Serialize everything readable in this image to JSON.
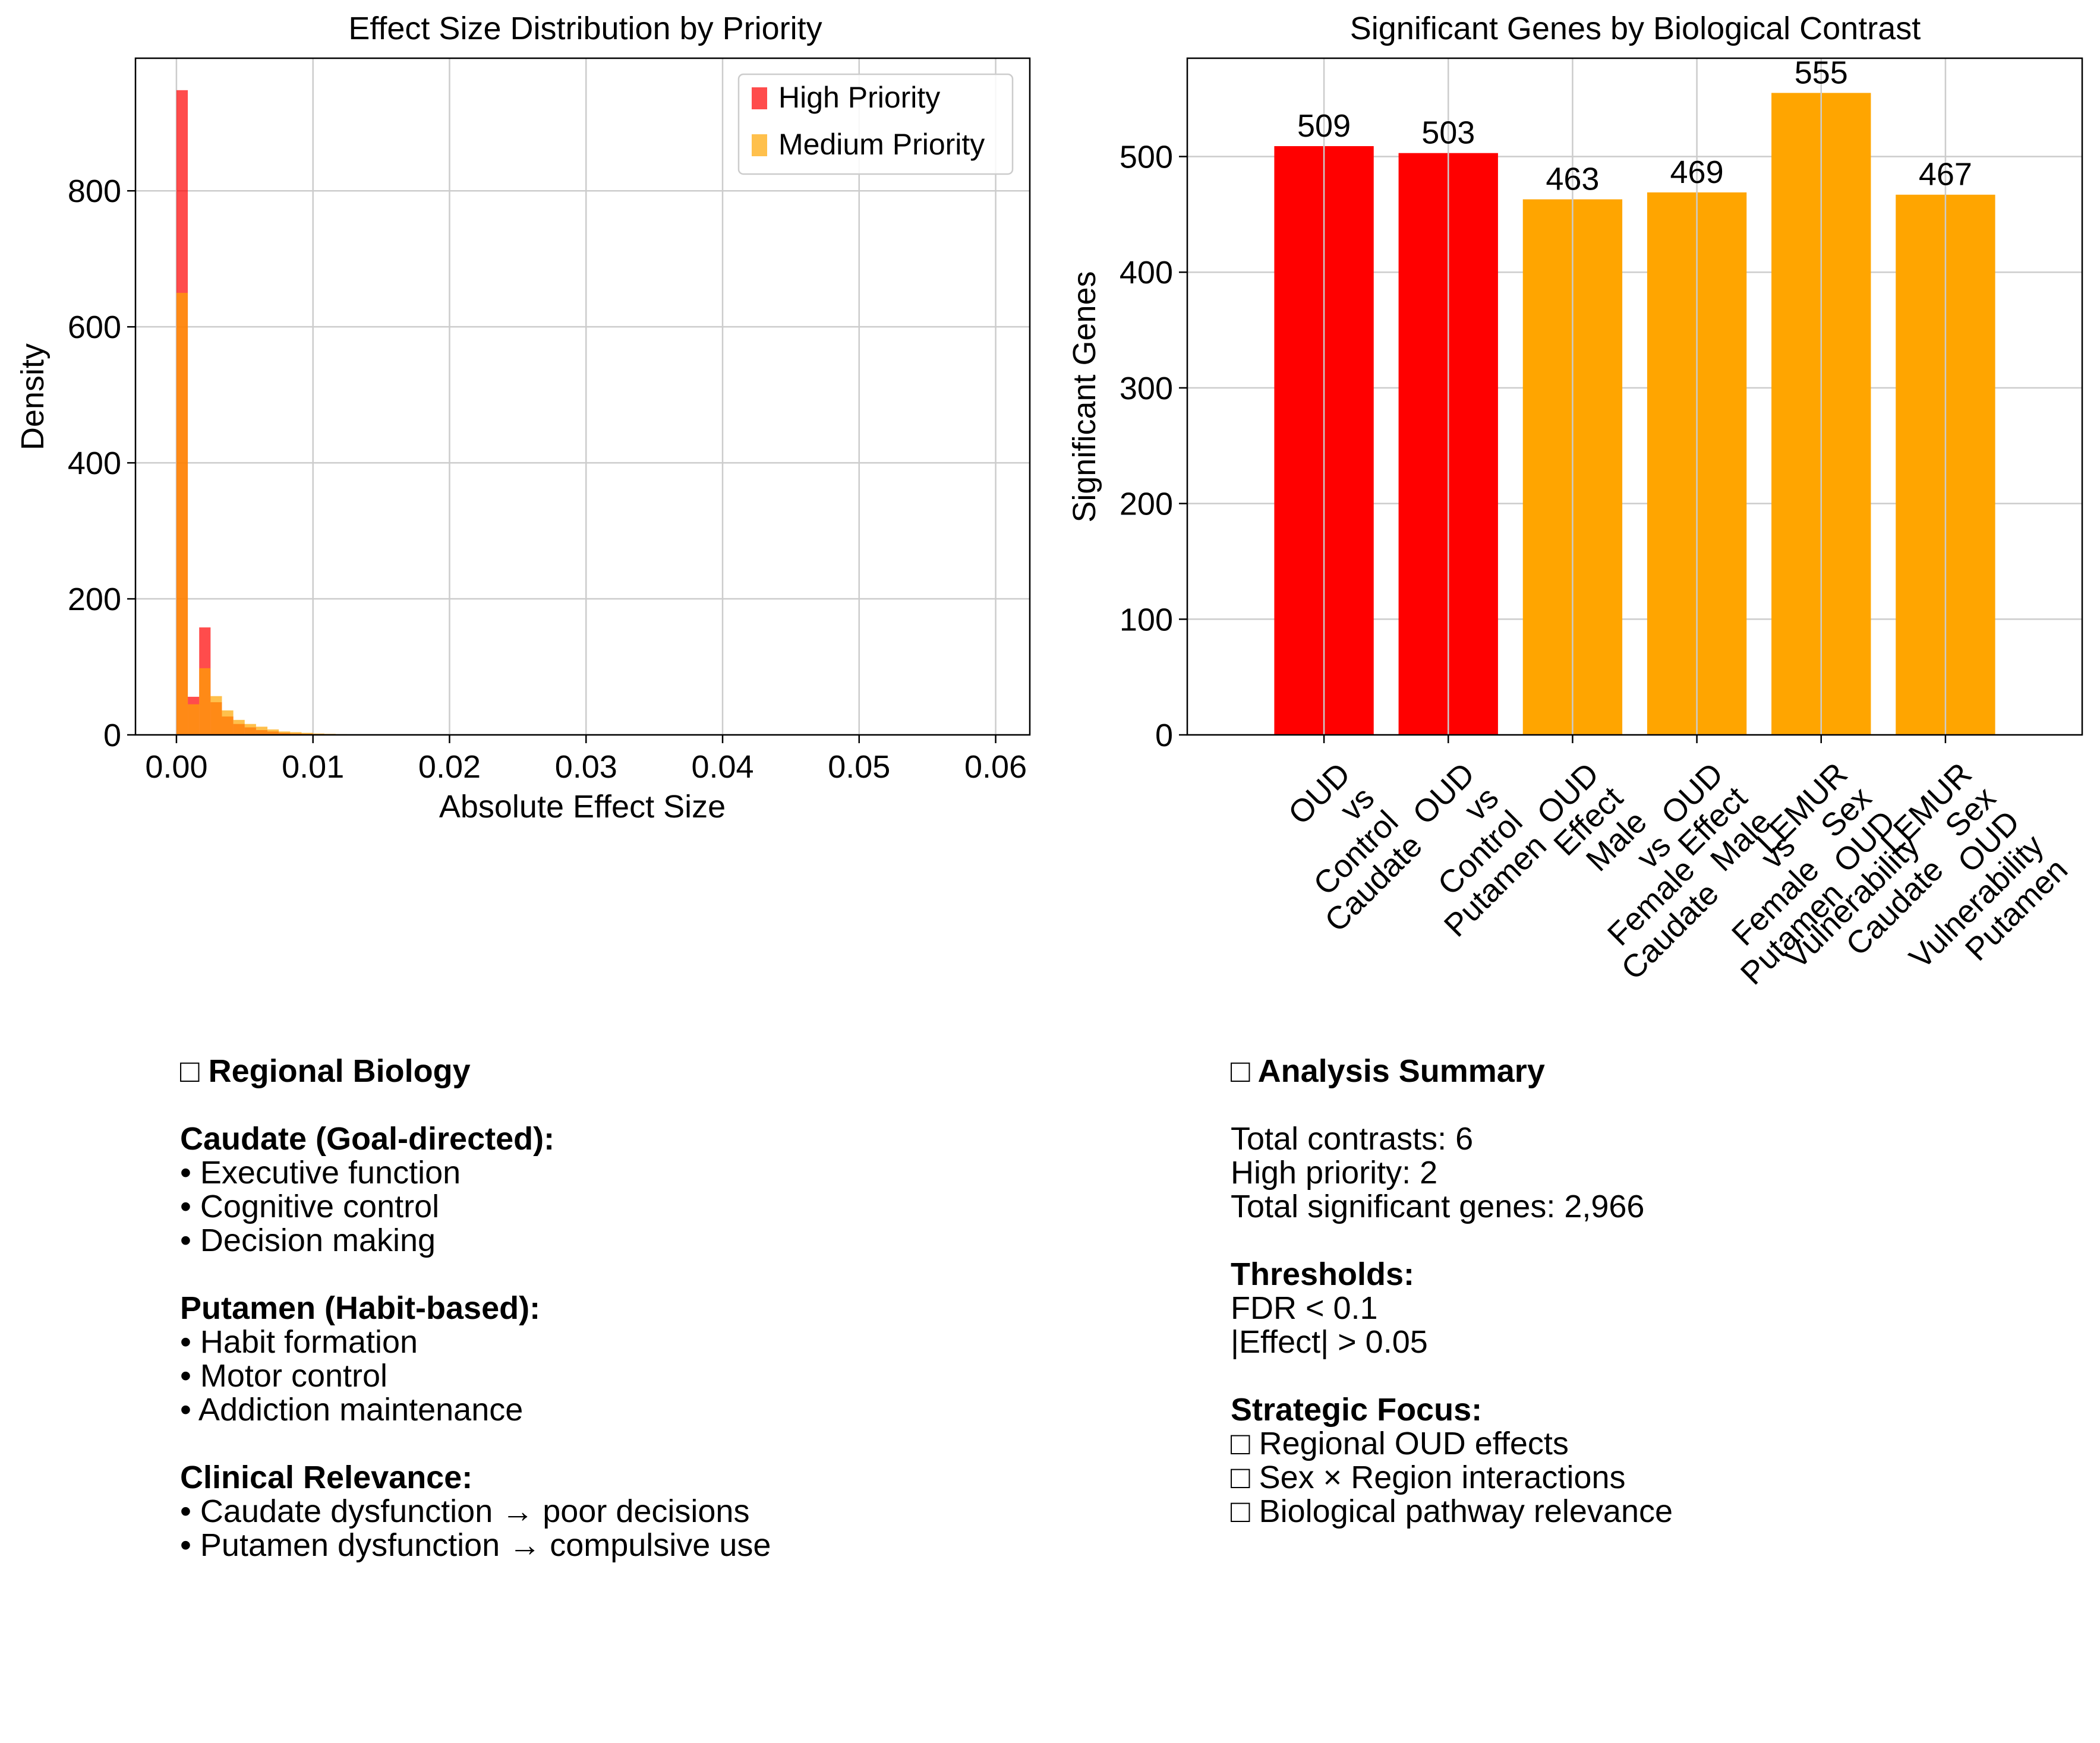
{
  "chart_data": [
    {
      "type": "histogram",
      "title": "Effect Size Distribution by Priority",
      "xlabel": "Absolute Effect Size",
      "ylabel": "Density",
      "xlim": [
        -0.003,
        0.0625
      ],
      "ylim": [
        0,
        995
      ],
      "xticks": [
        0.0,
        0.01,
        0.02,
        0.03,
        0.04,
        0.05,
        0.06
      ],
      "xtick_labels": [
        "0.00",
        "0.01",
        "0.02",
        "0.03",
        "0.04",
        "0.05",
        "0.06"
      ],
      "yticks": [
        0,
        200,
        400,
        600,
        800
      ],
      "ytick_labels": [
        "0",
        "200",
        "400",
        "600",
        "800"
      ],
      "grid": true,
      "legend_position": "top-right",
      "series": [
        {
          "name": "High Priority",
          "color": "#ff0000",
          "alpha": 0.7,
          "bin_width": 0.000833,
          "bin_start": 0.0,
          "values": [
            948,
            56,
            158,
            48,
            27,
            16,
            11,
            7,
            5,
            3,
            2,
            1.5,
            1
          ]
        },
        {
          "name": "Medium Priority",
          "color": "#ffa500",
          "alpha": 0.7,
          "bin_width": 0.000833,
          "bin_start": 0.0,
          "values": [
            650,
            45,
            98,
            57,
            36,
            22,
            16,
            12,
            8,
            5,
            4,
            3,
            2,
            1.5,
            1,
            0.5
          ]
        }
      ]
    },
    {
      "type": "bar",
      "title": "Significant Genes by Biological Contrast",
      "xlabel": "",
      "ylabel": "Significant Genes",
      "ylim": [
        0,
        585
      ],
      "yticks": [
        0,
        100,
        200,
        300,
        400,
        500
      ],
      "ytick_labels": [
        "0",
        "100",
        "200",
        "300",
        "400",
        "500"
      ],
      "grid": true,
      "categories": [
        "OUD\nvs\nControl\nCaudate",
        "OUD\nvs\nControl\nPutamen",
        "OUD\nEffect\nMale\nvs\nFemale\nCaudate",
        "OUD\nEffect\nMale\nvs\nFemale\nPutamen",
        "LEMUR\nSex\nOUD\nVulnerability\nCaudate",
        "LEMUR\nSex\nOUD\nVulnerability\nPutamen"
      ],
      "values": [
        509,
        503,
        463,
        469,
        555,
        467
      ],
      "value_labels": [
        "509",
        "503",
        "463",
        "469",
        "555",
        "467"
      ],
      "colors": [
        "#ff0000",
        "#ff0000",
        "#ffa500",
        "#ffa500",
        "#ffa500",
        "#ffa500"
      ]
    }
  ],
  "regional_biology": {
    "lines": [
      {
        "text": "□ Regional Biology",
        "bold": true
      },
      {
        "text": "",
        "bold": false
      },
      {
        "text": "Caudate (Goal-directed):",
        "bold": true
      },
      {
        "text": "• Executive function",
        "bold": false
      },
      {
        "text": "• Cognitive control",
        "bold": false
      },
      {
        "text": "• Decision making",
        "bold": false
      },
      {
        "text": "",
        "bold": false
      },
      {
        "text": "Putamen (Habit-based):",
        "bold": true
      },
      {
        "text": "• Habit formation",
        "bold": false
      },
      {
        "text": "• Motor control",
        "bold": false
      },
      {
        "text": "• Addiction maintenance",
        "bold": false
      },
      {
        "text": "",
        "bold": false
      },
      {
        "text": "Clinical Relevance:",
        "bold": true
      },
      {
        "text": "• Caudate dysfunction → poor decisions",
        "bold": false
      },
      {
        "text": "• Putamen dysfunction → compulsive use",
        "bold": false
      }
    ]
  },
  "analysis_summary": {
    "lines": [
      {
        "text": "□ Analysis Summary",
        "bold": true
      },
      {
        "text": "",
        "bold": false
      },
      {
        "text": "Total contrasts: 6",
        "bold": false
      },
      {
        "text": "High priority: 2",
        "bold": false
      },
      {
        "text": "Total significant genes: 2,966",
        "bold": false
      },
      {
        "text": "",
        "bold": false
      },
      {
        "text": "Thresholds:",
        "bold": true
      },
      {
        "text": "FDR < 0.1",
        "bold": false
      },
      {
        "text": "|Effect| > 0.05",
        "bold": false
      },
      {
        "text": "",
        "bold": false
      },
      {
        "text": "Strategic Focus:",
        "bold": true
      },
      {
        "text": "□ Regional OUD effects",
        "bold": false
      },
      {
        "text": "□ Sex × Region interactions",
        "bold": false
      },
      {
        "text": "□ Biological pathway relevance",
        "bold": false
      }
    ]
  },
  "colors": {
    "grid": "#cccccc",
    "axes": "#000000"
  }
}
